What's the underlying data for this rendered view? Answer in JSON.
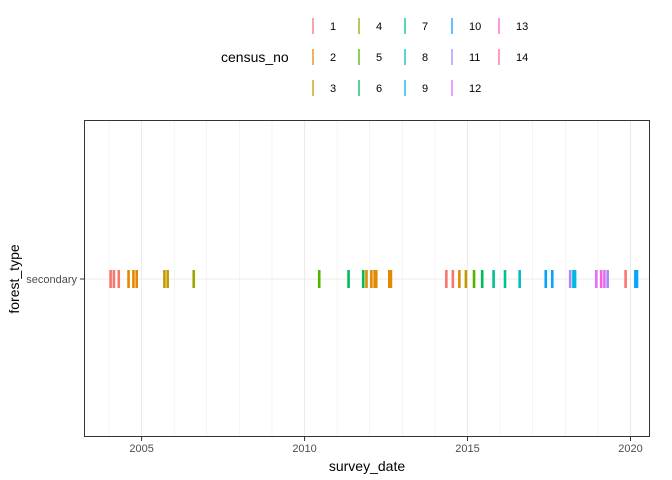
{
  "chart_data": {
    "type": "scatter",
    "mark": "vertical-tick",
    "xlabel": "survey_date",
    "ylabel": "forest_type",
    "x_ticks": [
      "2005",
      "2010",
      "2015",
      "2020"
    ],
    "x_tick_values": [
      2005,
      2010,
      2015,
      2020
    ],
    "xlim": [
      2003.6,
      2020.6
    ],
    "categories": [
      "secondary"
    ],
    "grid": true,
    "legend": {
      "title": "census_no",
      "position": "top",
      "entries": [
        "1",
        "2",
        "3",
        "4",
        "5",
        "6",
        "7",
        "8",
        "9",
        "10",
        "11",
        "12",
        "13",
        "14"
      ]
    },
    "colors": {
      "1": "#F8766D",
      "2": "#E38900",
      "3": "#C49A00",
      "4": "#99A800",
      "5": "#53B400",
      "6": "#00BC56",
      "7": "#00C094",
      "8": "#00BFC4",
      "9": "#00B6EB",
      "10": "#06A4FF",
      "11": "#A58AFF",
      "12": "#DF70F8",
      "13": "#FB61D7",
      "14": "#FF66A8"
    },
    "series": [
      {
        "name": "1",
        "category": "secondary",
        "x": [
          2004.05,
          2004.15,
          2004.3,
          2014.35,
          2014.55,
          2019.85
        ]
      },
      {
        "name": "2",
        "category": "secondary",
        "x": [
          2004.6,
          2004.75,
          2004.85,
          2011.9,
          2012.05,
          2012.15,
          2012.2,
          2012.6,
          2012.65,
          2014.75
        ]
      },
      {
        "name": "3",
        "category": "secondary",
        "x": [
          2005.7,
          2005.8,
          2014.95
        ]
      },
      {
        "name": "4",
        "category": "secondary",
        "x": [
          2006.6
        ]
      },
      {
        "name": "5",
        "category": "secondary",
        "x": [
          2010.45,
          2015.2
        ]
      },
      {
        "name": "6",
        "category": "secondary",
        "x": [
          2011.35,
          2011.8,
          2015.45
        ]
      },
      {
        "name": "7",
        "category": "secondary",
        "x": [
          2015.8,
          2016.15
        ]
      },
      {
        "name": "8",
        "category": "secondary",
        "x": [
          2016.6,
          2018.3
        ]
      },
      {
        "name": "9",
        "category": "secondary",
        "x": [
          2018.25
        ]
      },
      {
        "name": "10",
        "category": "secondary",
        "x": [
          2017.4,
          2017.6,
          2020.15,
          2020.2
        ]
      },
      {
        "name": "11",
        "category": "secondary",
        "x": [
          2018.15,
          2019.3
        ]
      },
      {
        "name": "12",
        "category": "secondary",
        "x": [
          2018.95,
          2019.2
        ]
      },
      {
        "name": "13",
        "category": "secondary",
        "x": [
          2019.1
        ]
      }
    ]
  }
}
